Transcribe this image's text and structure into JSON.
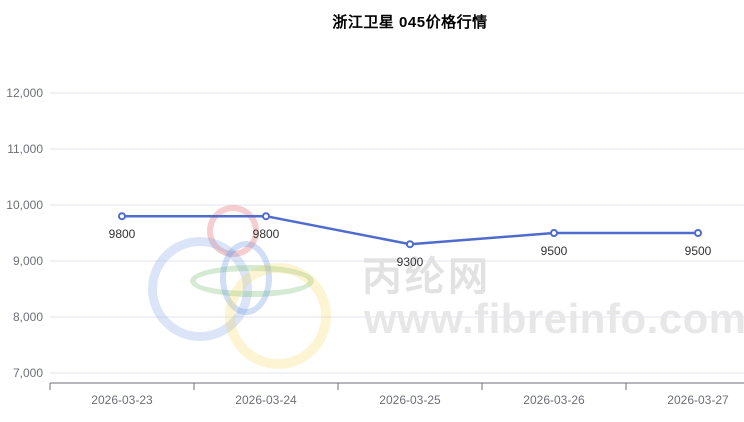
{
  "title": "浙江卫星 045价格行情",
  "watermark": {
    "cn_text": "丙纶网",
    "url_text": "www.fibreinfo.com",
    "logo_icon": "olympic-style-rings"
  },
  "chart_data": {
    "type": "line",
    "title": "浙江卫星 045价格行情",
    "categories": [
      "2026-03-23",
      "2026-03-24",
      "2026-03-25",
      "2026-03-26",
      "2026-03-27"
    ],
    "values": [
      9800,
      9800,
      9300,
      9500,
      9500
    ],
    "xlabel": "",
    "ylabel": "",
    "ylim": [
      7000,
      12000
    ],
    "ytick_interval": 1000,
    "ytick_labels": [
      "7,000",
      "8,000",
      "9,000",
      "10,000",
      "11,000",
      "12,000"
    ],
    "grid": true,
    "legend": "none",
    "data_labels_visible": true,
    "colors": {
      "line": "#4e6bcd",
      "point_fill": "#ffffff",
      "grid_line": "#E0E6F1",
      "axis_line": "#6E7079",
      "axis_label": "#6E7079",
      "data_label": "#333333",
      "title": "#000000",
      "background": "#ffffff"
    }
  }
}
